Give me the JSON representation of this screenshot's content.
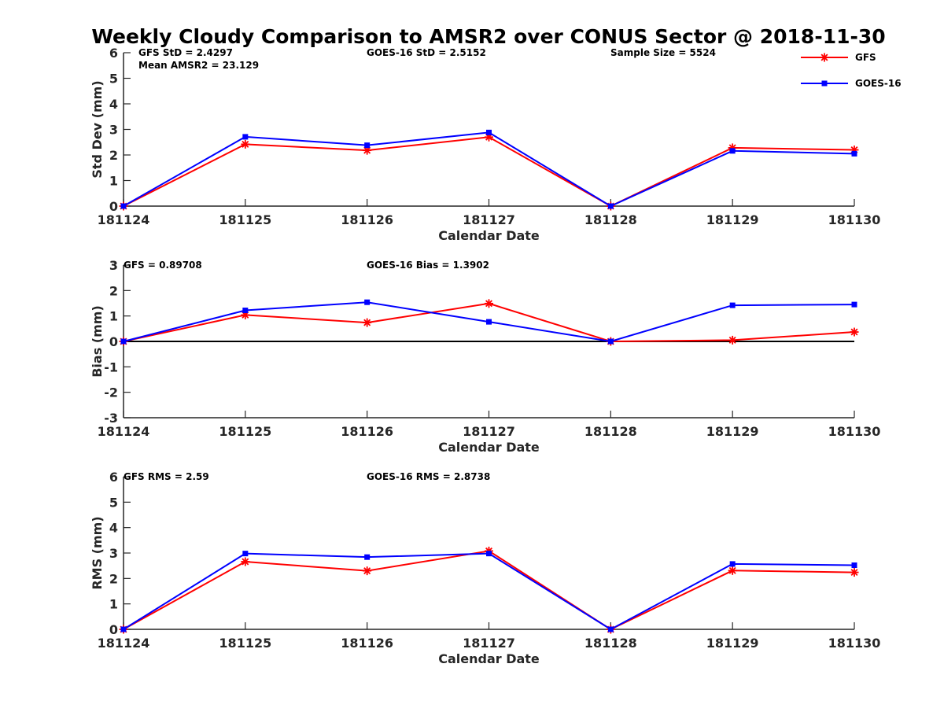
{
  "figure": {
    "title": "Weekly Cloudy Comparison to AMSR2 over CONUS Sector @ 2018-11-30"
  },
  "legend": {
    "position": "top-right",
    "entries": [
      {
        "name": "GFS",
        "color": "#ff0000",
        "marker": "asterisk"
      },
      {
        "name": "GOES-16",
        "color": "#0000ff",
        "marker": "square"
      }
    ]
  },
  "chart_data": [
    {
      "type": "line",
      "xlabel": "Calendar Date",
      "ylabel": "Std Dev (mm)",
      "ylim": [
        0,
        6
      ],
      "yticks": [
        "0",
        "1",
        "2",
        "3",
        "4",
        "5",
        "6"
      ],
      "categories": [
        "181124",
        "181125",
        "181126",
        "181127",
        "181128",
        "181129",
        "181130"
      ],
      "zero_line": false,
      "annotations": [
        {
          "text": "GFS StD = 2.4297"
        },
        {
          "text": "Mean AMSR2 = 23.129"
        },
        {
          "text": "GOES-16 StD = 2.5152"
        },
        {
          "text": "Sample Size = 5524"
        }
      ],
      "series": [
        {
          "name": "GFS",
          "color": "#ff0000",
          "marker": "asterisk",
          "values": [
            0,
            2.42,
            2.18,
            2.7,
            0,
            2.28,
            2.2
          ]
        },
        {
          "name": "GOES-16",
          "color": "#0000ff",
          "marker": "square",
          "values": [
            0,
            2.71,
            2.38,
            2.88,
            0,
            2.16,
            2.05
          ]
        }
      ]
    },
    {
      "type": "line",
      "xlabel": "Calendar Date",
      "ylabel": "Bias (mm)",
      "ylim": [
        -3,
        3
      ],
      "yticks": [
        "-3",
        "-2",
        "-1",
        "0",
        "1",
        "2",
        "3"
      ],
      "categories": [
        "181124",
        "181125",
        "181126",
        "181127",
        "181128",
        "181129",
        "181130"
      ],
      "zero_line": true,
      "annotations": [
        {
          "text": "GFS = 0.89708"
        },
        {
          "text": "GOES-16 Bias  = 1.3902"
        }
      ],
      "series": [
        {
          "name": "GFS",
          "color": "#ff0000",
          "marker": "asterisk",
          "values": [
            0,
            1.04,
            0.74,
            1.49,
            0,
            0.05,
            0.37
          ]
        },
        {
          "name": "GOES-16",
          "color": "#0000ff",
          "marker": "square",
          "values": [
            0,
            1.22,
            1.54,
            0.77,
            0,
            1.42,
            1.45
          ]
        }
      ]
    },
    {
      "type": "line",
      "xlabel": "Calendar Date",
      "ylabel": "RMS (mm)",
      "ylim": [
        0,
        6
      ],
      "yticks": [
        "0",
        "1",
        "2",
        "3",
        "4",
        "5",
        "6"
      ],
      "categories": [
        "181124",
        "181125",
        "181126",
        "181127",
        "181128",
        "181129",
        "181130"
      ],
      "zero_line": false,
      "annotations": [
        {
          "text": "GFS RMS = 2.59"
        },
        {
          "text": "GOES-16 RMS = 2.8738"
        }
      ],
      "series": [
        {
          "name": "GFS",
          "color": "#ff0000",
          "marker": "asterisk",
          "values": [
            0,
            2.66,
            2.3,
            3.08,
            0,
            2.31,
            2.24
          ]
        },
        {
          "name": "GOES-16",
          "color": "#0000ff",
          "marker": "square",
          "values": [
            0,
            2.98,
            2.84,
            2.98,
            0,
            2.57,
            2.52
          ]
        }
      ]
    }
  ]
}
